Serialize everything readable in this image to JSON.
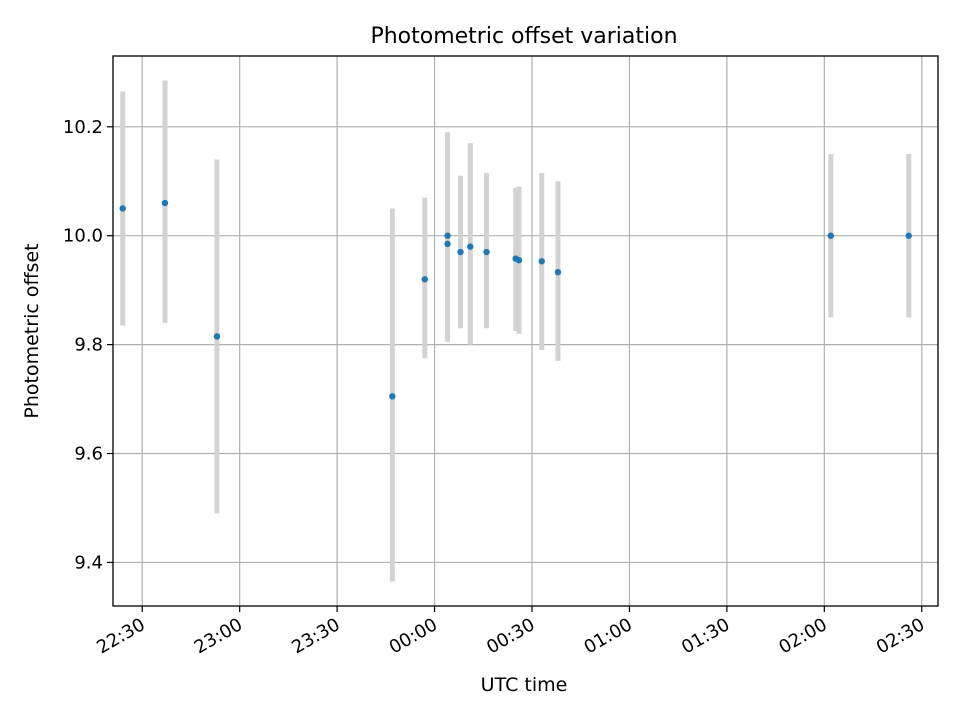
{
  "chart_data": {
    "type": "scatter",
    "title": "Photometric offset variation",
    "xlabel": "UTC time",
    "ylabel": "Photometric offset",
    "xlim": [
      "22:21",
      "02:35"
    ],
    "ylim": [
      9.32,
      10.33
    ],
    "grid": true,
    "x_ticks": [
      "22:30",
      "23:00",
      "23:30",
      "00:00",
      "00:30",
      "01:00",
      "01:30",
      "02:00",
      "02:30"
    ],
    "y_ticks": [
      9.4,
      9.6,
      9.8,
      10.0,
      10.2
    ],
    "errorbar_color": "#d3d3d3",
    "point_color": "#1f77b4",
    "series": [
      {
        "points": [
          {
            "x": "22:24",
            "y": 10.05,
            "yerr_low": 9.835,
            "yerr_high": 10.265
          },
          {
            "x": "22:37",
            "y": 10.06,
            "yerr_low": 9.84,
            "yerr_high": 10.285
          },
          {
            "x": "22:53",
            "y": 9.815,
            "yerr_low": 9.49,
            "yerr_high": 10.14
          },
          {
            "x": "23:47",
            "y": 9.705,
            "yerr_low": 9.365,
            "yerr_high": 10.05
          },
          {
            "x": "23:57",
            "y": 9.92,
            "yerr_low": 9.775,
            "yerr_high": 10.07
          },
          {
            "x": "00:04",
            "y": 9.985,
            "yerr_low": 9.805,
            "yerr_high": 10.175
          },
          {
            "x": "00:04",
            "y": 10.0,
            "yerr_low": 9.815,
            "yerr_high": 10.19
          },
          {
            "x": "00:08",
            "y": 9.97,
            "yerr_low": 9.83,
            "yerr_high": 10.11
          },
          {
            "x": "00:11",
            "y": 9.98,
            "yerr_low": 9.8,
            "yerr_high": 10.17
          },
          {
            "x": "00:16",
            "y": 9.97,
            "yerr_low": 9.83,
            "yerr_high": 10.115
          },
          {
            "x": "00:25",
            "y": 9.958,
            "yerr_low": 9.825,
            "yerr_high": 10.088
          },
          {
            "x": "00:26",
            "y": 9.955,
            "yerr_low": 9.82,
            "yerr_high": 10.09
          },
          {
            "x": "00:33",
            "y": 9.953,
            "yerr_low": 9.79,
            "yerr_high": 10.115
          },
          {
            "x": "00:38",
            "y": 9.933,
            "yerr_low": 9.77,
            "yerr_high": 10.1
          },
          {
            "x": "02:02",
            "y": 10.0,
            "yerr_low": 9.85,
            "yerr_high": 10.15
          },
          {
            "x": "02:26",
            "y": 10.0,
            "yerr_low": 9.85,
            "yerr_high": 10.15
          }
        ]
      }
    ]
  }
}
